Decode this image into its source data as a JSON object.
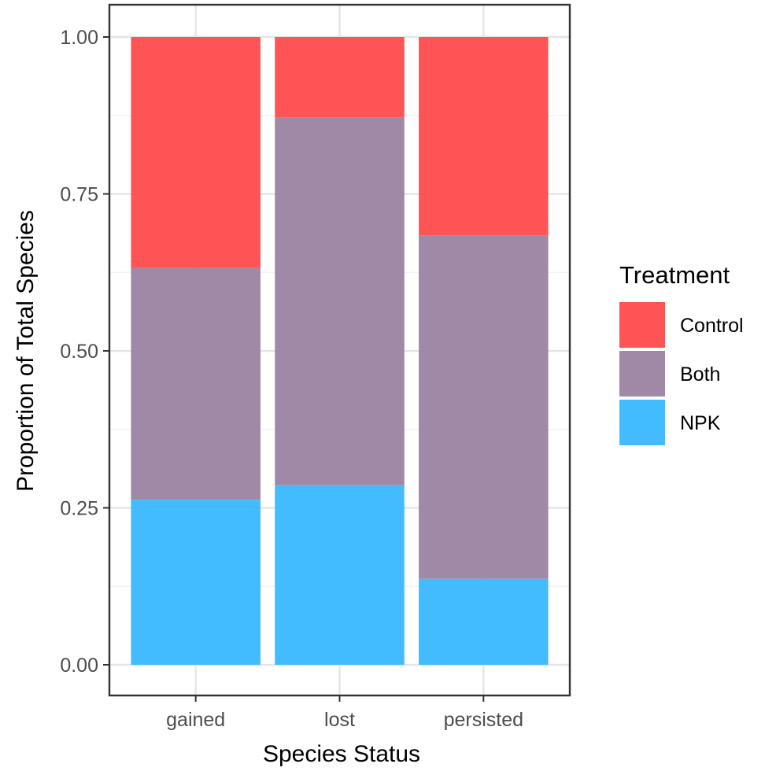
{
  "chart_data": {
    "type": "bar",
    "stacked": true,
    "categories": [
      "gained",
      "lost",
      "persisted"
    ],
    "series": [
      {
        "name": "NPK",
        "color": "#42bcff",
        "values": [
          0.263,
          0.286,
          0.137
        ]
      },
      {
        "name": "Both",
        "color": "#a088a7",
        "values": [
          0.369,
          0.586,
          0.547
        ]
      },
      {
        "name": "Control",
        "color": "#fe5455",
        "values": [
          0.368,
          0.128,
          0.316
        ]
      }
    ],
    "xlabel": "Species Status",
    "ylabel": "Proportion of Total Species",
    "ylim": [
      0,
      1
    ],
    "yticks": [
      "0.00",
      "0.25",
      "0.50",
      "0.75",
      "1.00"
    ],
    "grid": true,
    "legend": {
      "title": "Treatment",
      "position": "right",
      "entries": [
        "Control",
        "Both",
        "NPK"
      ]
    }
  }
}
